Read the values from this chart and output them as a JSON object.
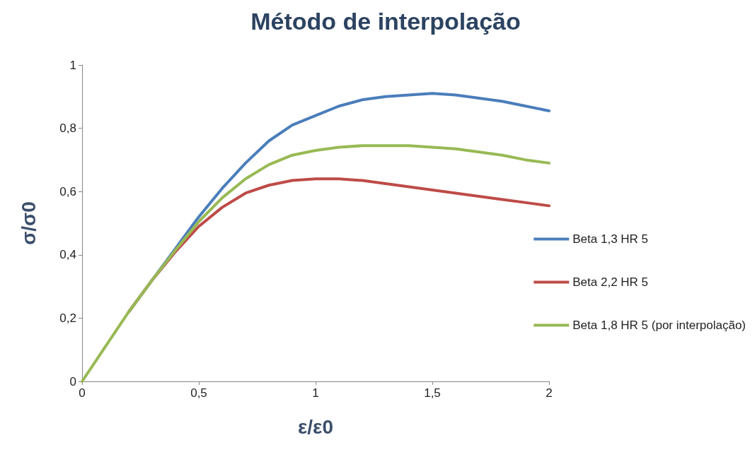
{
  "chart_data": {
    "type": "line",
    "title": "Método de interpolação",
    "xlabel": "ε/ε0",
    "ylabel": "σ/σ0",
    "x": [
      0,
      0.1,
      0.2,
      0.3,
      0.4,
      0.5,
      0.6,
      0.7,
      0.8,
      0.9,
      1.0,
      1.1,
      1.2,
      1.3,
      1.4,
      1.5,
      1.6,
      1.7,
      1.8,
      1.9,
      2.0
    ],
    "series": [
      {
        "name": "Beta 1,3 HR 5",
        "color": "#4a7ebb",
        "values": [
          null,
          null,
          0.22,
          0.32,
          0.42,
          0.52,
          0.61,
          0.69,
          0.76,
          0.81,
          0.84,
          0.87,
          0.89,
          0.9,
          0.905,
          0.91,
          0.905,
          0.895,
          0.885,
          0.87,
          0.855
        ]
      },
      {
        "name": "Beta 2,2 HR 5",
        "color": "#be4b48",
        "values": [
          null,
          null,
          0.22,
          0.32,
          0.41,
          0.49,
          0.55,
          0.595,
          0.62,
          0.635,
          0.64,
          0.64,
          0.635,
          0.625,
          0.615,
          0.605,
          0.595,
          0.585,
          0.575,
          0.565,
          0.555
        ]
      },
      {
        "name": "Beta 1,8 HR 5 (por interpolação)",
        "color": "#98b954",
        "values": [
          0,
          0.11,
          0.22,
          0.32,
          0.415,
          0.505,
          0.58,
          0.64,
          0.685,
          0.715,
          0.73,
          0.74,
          0.745,
          0.745,
          0.745,
          0.74,
          0.735,
          0.725,
          0.715,
          0.7,
          0.69
        ]
      }
    ],
    "xlim": [
      0,
      2
    ],
    "xticks": [
      0,
      {
        "value": 0.5,
        "label": "0,5"
      },
      1,
      {
        "value": 1.5,
        "label": "1,5"
      },
      2
    ],
    "ylim": [
      0,
      1
    ],
    "yticks": [
      0,
      {
        "value": 0.2,
        "label": "0,2"
      },
      {
        "value": 0.4,
        "label": "0,4"
      },
      {
        "value": 0.6,
        "label": "0,6"
      },
      {
        "value": 0.8,
        "label": "0,8"
      },
      1
    ],
    "grid": false,
    "legend": "right",
    "marker": "none",
    "line_style": "solid"
  }
}
